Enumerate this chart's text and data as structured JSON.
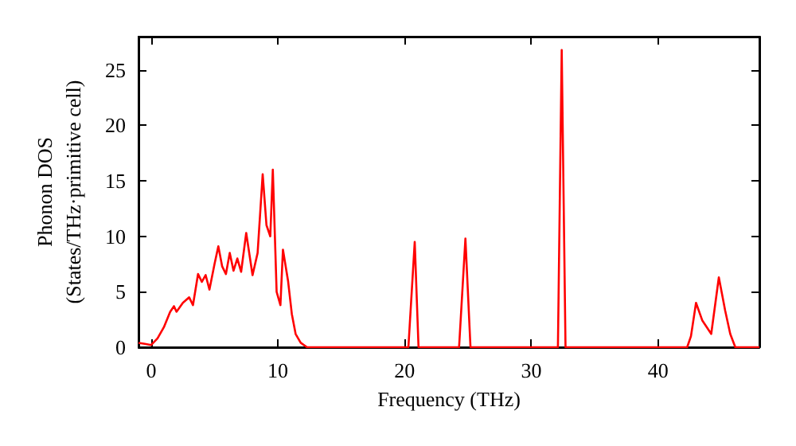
{
  "chart_data": {
    "type": "line",
    "xlabel": "Frequency (THz)",
    "ylabel": "Phonon DOS\n(States/THz·primitive cell)",
    "x": [
      -1,
      -0.5,
      0,
      0.5,
      1,
      1.5,
      1.8,
      2,
      2.5,
      3,
      3.3,
      3.7,
      4,
      4.3,
      4.6,
      5,
      5.3,
      5.6,
      5.9,
      6.2,
      6.5,
      6.8,
      7.1,
      7.5,
      8,
      8.4,
      8.8,
      9.1,
      9.4,
      9.6,
      9.9,
      10.2,
      10.4,
      10.8,
      11.1,
      11.4,
      11.8,
      12.3,
      20.3,
      20.8,
      21.1,
      24.3,
      24.8,
      25.2,
      32.1,
      32.4,
      32.7,
      42.3,
      42.6,
      43,
      43.5,
      44.2,
      44.8,
      45.3,
      45.7,
      46.1,
      48
    ],
    "series": [
      {
        "color": "#ff0000",
        "values": [
          0.4,
          0.3,
          0.2,
          0.8,
          1.8,
          3.2,
          3.7,
          3.2,
          4,
          4.5,
          3.8,
          6.6,
          5.9,
          6.5,
          5.2,
          7.5,
          9.1,
          7.3,
          6.6,
          8.5,
          6.9,
          8,
          6.8,
          10.3,
          6.5,
          8.5,
          15.6,
          11,
          10,
          16,
          5,
          3.8,
          8.8,
          6,
          3,
          1.2,
          0.4,
          0,
          0,
          9.5,
          0,
          0,
          9.8,
          0,
          0,
          26.8,
          0,
          0,
          1,
          4,
          2.4,
          1.2,
          6.3,
          3.3,
          1.2,
          0,
          0
        ]
      }
    ],
    "xlim": [
      -1,
      48
    ],
    "ylim": [
      0,
      28
    ],
    "xticks": [
      0,
      10,
      20,
      30,
      40
    ],
    "yticks": [
      0,
      5,
      10,
      15,
      20,
      25
    ],
    "grid": false,
    "marker": "none",
    "line_style": "solid"
  }
}
